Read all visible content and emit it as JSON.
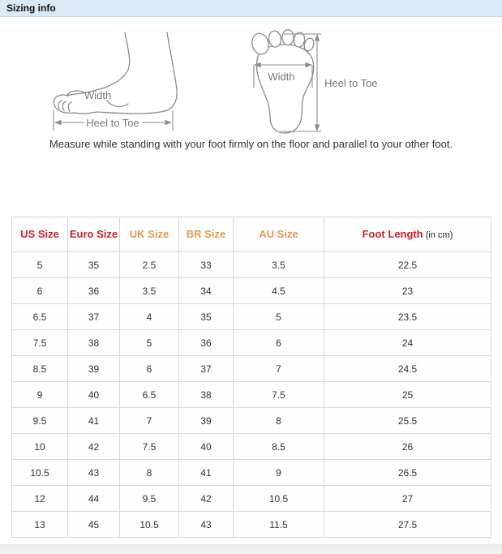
{
  "header": {
    "title": "Sizing info"
  },
  "diagram": {
    "side_view": {
      "width_label": "Width",
      "heel_to_toe_label": "Heel to Toe"
    },
    "sole_view": {
      "width_label": "Width",
      "heel_to_toe_label": "Heel to Toe"
    },
    "instruction": "Measure while standing with your foot firmly on the floor and parallel to your other foot."
  },
  "table": {
    "columns": [
      "US Size",
      "Euro Size",
      "UK Size",
      "BR Size",
      "AU Size",
      "Foot Length"
    ],
    "foot_length_unit": "(in cm)",
    "rows": [
      [
        "5",
        "35",
        "2.5",
        "33",
        "3.5",
        "22.5"
      ],
      [
        "6",
        "36",
        "3.5",
        "34",
        "4.5",
        "23"
      ],
      [
        "6.5",
        "37",
        "4",
        "35",
        "5",
        "23.5"
      ],
      [
        "7.5",
        "38",
        "5",
        "36",
        "6",
        "24"
      ],
      [
        "8.5",
        "39",
        "6",
        "37",
        "7",
        "24.5"
      ],
      [
        "9",
        "40",
        "6.5",
        "38",
        "7.5",
        "25"
      ],
      [
        "9.5",
        "41",
        "7",
        "39",
        "8",
        "25.5"
      ],
      [
        "10",
        "42",
        "7.5",
        "40",
        "8.5",
        "26"
      ],
      [
        "10.5",
        "43",
        "8",
        "41",
        "9",
        "26.5"
      ],
      [
        "12",
        "44",
        "9.5",
        "42",
        "10.5",
        "27"
      ],
      [
        "13",
        "45",
        "10.5",
        "43",
        "11.5",
        "27.5"
      ]
    ]
  },
  "colors": {
    "titlebar_bg": "#d9e9f8",
    "header_red": "#cc2228",
    "header_orange": "#df9b52",
    "table_border": "#d8d8d8",
    "diagram_line": "#8a8a8a"
  }
}
